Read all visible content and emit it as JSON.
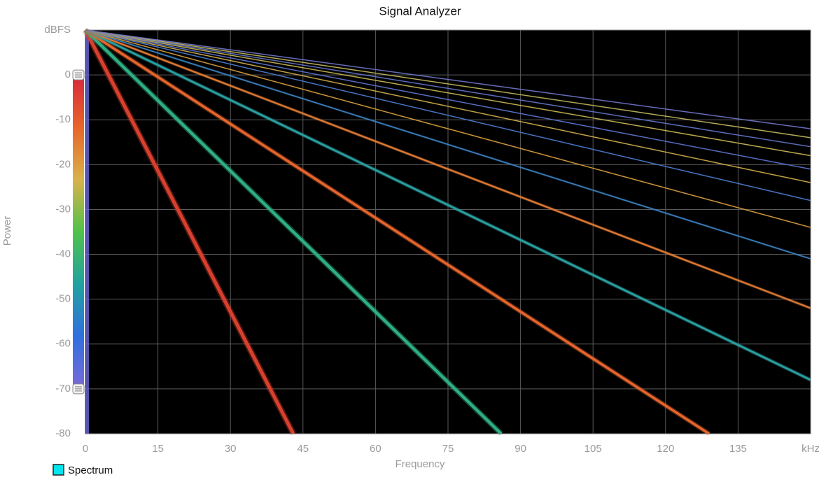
{
  "chart_data": {
    "type": "spectrogram",
    "title": "Signal Analyzer",
    "x_label": "Frequency",
    "y_label": "Power",
    "xlim": [
      0,
      150
    ],
    "ylim": [
      -80,
      10
    ],
    "xticks": [
      0,
      15,
      30,
      45,
      60,
      75,
      90,
      105,
      120,
      135,
      {
        "value": 150,
        "label": "kHz"
      }
    ],
    "yticks": [
      -80,
      -70,
      -60,
      -50,
      -40,
      -30,
      -20,
      -10,
      0,
      {
        "value": 10,
        "label": "dBFS"
      }
    ],
    "grid": true,
    "legend": {
      "name": "Spectrum",
      "color": "#00e5ee",
      "position": "bottom-left"
    },
    "colorbar": {
      "range": [
        -70,
        0
      ],
      "colors": [
        "#d7263d",
        "#e8652a",
        "#d9b24a",
        "#4fc24a",
        "#1fa3a0",
        "#2f6fe0",
        "#7a6ad8"
      ]
    },
    "traces": [
      {
        "x": [
          0,
          43
        ],
        "y": [
          10,
          -80
        ],
        "color": "#d8402e"
      },
      {
        "x": [
          0,
          86
        ],
        "y": [
          10,
          -80
        ],
        "color": "#2fae84"
      },
      {
        "x": [
          0,
          129
        ],
        "y": [
          10,
          -80
        ],
        "color": "#e5652c"
      },
      {
        "x": [
          0,
          150
        ],
        "y": [
          10,
          -68
        ],
        "color": "#2a9fa0"
      },
      {
        "x": [
          0,
          150
        ],
        "y": [
          10,
          -52
        ],
        "color": "#e07a34"
      },
      {
        "x": [
          0,
          150
        ],
        "y": [
          10,
          -41
        ],
        "color": "#3a80c0"
      },
      {
        "x": [
          0,
          150
        ],
        "y": [
          10,
          -34
        ],
        "color": "#d29a3c"
      },
      {
        "x": [
          0,
          150
        ],
        "y": [
          10,
          -28
        ],
        "color": "#4a78c8"
      },
      {
        "x": [
          0,
          150
        ],
        "y": [
          10,
          -24
        ],
        "color": "#c8a84a"
      },
      {
        "x": [
          0,
          150
        ],
        "y": [
          10,
          -21
        ],
        "color": "#5a70c8"
      },
      {
        "x": [
          0,
          150
        ],
        "y": [
          10,
          -18
        ],
        "color": "#c0b050"
      },
      {
        "x": [
          0,
          150
        ],
        "y": [
          10,
          -16
        ],
        "color": "#6070c0"
      },
      {
        "x": [
          0,
          150
        ],
        "y": [
          10,
          -14
        ],
        "color": "#b8b058"
      },
      {
        "x": [
          0,
          150
        ],
        "y": [
          10,
          -12
        ],
        "color": "#6a70c0"
      }
    ]
  }
}
